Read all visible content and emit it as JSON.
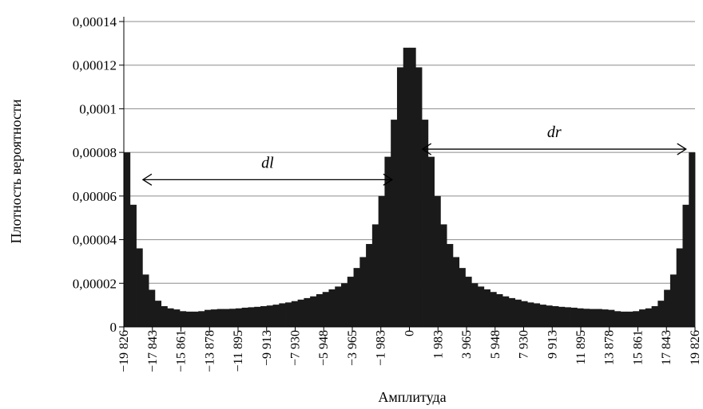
{
  "chart_data": {
    "type": "bar",
    "ylabel": "Плотность вероятности",
    "xlabel": "Амплитуда",
    "xlim": [
      -19826,
      19826
    ],
    "ylim": [
      0,
      0.00014
    ],
    "y_ticks": [
      {
        "value": 0,
        "label": "0"
      },
      {
        "value": 2e-05,
        "label": "0,00002"
      },
      {
        "value": 4e-05,
        "label": "0,00004"
      },
      {
        "value": 6e-05,
        "label": "0,00006"
      },
      {
        "value": 8e-05,
        "label": "0,00008"
      },
      {
        "value": 0.0001,
        "label": "0,0001"
      },
      {
        "value": 0.00012,
        "label": "0,00012"
      },
      {
        "value": 0.00014,
        "label": "0,00014"
      }
    ],
    "x_ticks": [
      {
        "value": -19826,
        "label": "−19 826"
      },
      {
        "value": -17843,
        "label": "−17 843"
      },
      {
        "value": -15861,
        "label": "−15 861"
      },
      {
        "value": -13878,
        "label": "−13 878"
      },
      {
        "value": -11895,
        "label": "−11 895"
      },
      {
        "value": -9913,
        "label": "−9 913"
      },
      {
        "value": -7930,
        "label": "−7 930"
      },
      {
        "value": -5948,
        "label": "−5 948"
      },
      {
        "value": -3965,
        "label": "−3 965"
      },
      {
        "value": -1983,
        "label": "−1 983"
      },
      {
        "value": 0,
        "label": "0"
      },
      {
        "value": 1983,
        "label": "1 983"
      },
      {
        "value": 3965,
        "label": "3 965"
      },
      {
        "value": 5948,
        "label": "5 948"
      },
      {
        "value": 7930,
        "label": "7 930"
      },
      {
        "value": 9913,
        "label": "9 913"
      },
      {
        "value": 11895,
        "label": "11 895"
      },
      {
        "value": 13878,
        "label": "13 878"
      },
      {
        "value": 15861,
        "label": "15 861"
      },
      {
        "value": 17843,
        "label": "17 843"
      },
      {
        "value": 19826,
        "label": "19 826"
      }
    ],
    "grid": "horizontal",
    "bar_color": "#1a1a1a",
    "half_values": [
      8e-05,
      5.6e-05,
      3.6e-05,
      2.4e-05,
      1.7e-05,
      1.2e-05,
      9.5e-06,
      8.5e-06,
      8e-06,
      7.2e-06,
      7e-06,
      7e-06,
      7.2e-06,
      7.8e-06,
      8e-06,
      8.2e-06,
      8.2e-06,
      8.3e-06,
      8.5e-06,
      8.8e-06,
      9e-06,
      9.2e-06,
      9.5e-06,
      9.8e-06,
      1.02e-05,
      1.08e-05,
      1.12e-05,
      1.18e-05,
      1.25e-05,
      1.32e-05,
      1.4e-05,
      1.5e-05,
      1.6e-05,
      1.72e-05,
      1.85e-05,
      2e-05,
      2.3e-05,
      2.7e-05,
      3.2e-05,
      3.8e-05,
      4.7e-05,
      6e-05,
      7.8e-05,
      9.5e-05,
      0.000119,
      0.000128
    ],
    "annotations": [
      {
        "text": "dl",
        "from": -18500,
        "to": -1200,
        "y": 6.75e-05
      },
      {
        "text": "dr",
        "from": 900,
        "to": 19200,
        "y": 8.15e-05
      }
    ]
  }
}
